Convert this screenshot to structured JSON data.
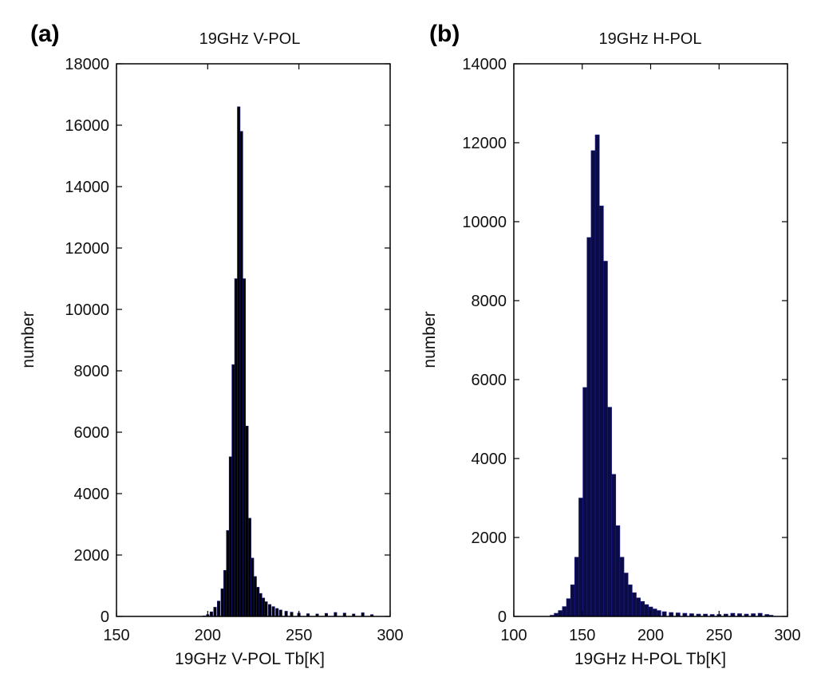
{
  "colors": {
    "bar_fill_a": "#000000",
    "bar_fill_b": "#0b0b45",
    "bar_edge": "#1a1a8c",
    "axis": "#000000",
    "background": "#ffffff"
  },
  "chart_data": [
    {
      "type": "bar",
      "panel_label": "(a)",
      "title": "19GHz V-POL",
      "xlabel": "19GHz V-POL Tb[K]",
      "ylabel": "number",
      "xlim": [
        150,
        300
      ],
      "ylim": [
        0,
        18000
      ],
      "xticks": [
        "150",
        "200",
        "250",
        "300"
      ],
      "yticks": [
        "0",
        "2000",
        "4000",
        "6000",
        "8000",
        "10000",
        "12000",
        "14000",
        "16000",
        "18000"
      ],
      "bin_width": 1.5,
      "grid": false,
      "legend": "none",
      "x": [
        198,
        200,
        202,
        204,
        206,
        208,
        209.5,
        211,
        212.5,
        214,
        215.5,
        217,
        218.5,
        220,
        221.5,
        223,
        224.5,
        226,
        227.5,
        229,
        230.5,
        232,
        234,
        236,
        238,
        240,
        243,
        246,
        250,
        255,
        260,
        265,
        270,
        275,
        280,
        285,
        290
      ],
      "values": [
        20,
        60,
        150,
        300,
        500,
        900,
        1500,
        2800,
        5200,
        8200,
        11000,
        16600,
        15800,
        11000,
        6200,
        3200,
        1900,
        1300,
        950,
        750,
        600,
        480,
        390,
        320,
        260,
        210,
        170,
        140,
        110,
        90,
        80,
        100,
        130,
        110,
        80,
        120,
        60
      ]
    },
    {
      "type": "bar",
      "panel_label": "(b)",
      "title": "19GHz H-POL",
      "xlabel": "19GHz H-POL Tb[K]",
      "ylabel": "number",
      "xlim": [
        100,
        300
      ],
      "ylim": [
        0,
        14000
      ],
      "xticks": [
        "100",
        "150",
        "200",
        "250",
        "300"
      ],
      "yticks": [
        "0",
        "2000",
        "4000",
        "6000",
        "8000",
        "10000",
        "12000",
        "14000"
      ],
      "bin_width": 3,
      "grid": false,
      "legend": "none",
      "x": [
        128,
        131,
        134,
        137,
        140,
        143,
        146,
        149,
        152,
        155,
        158,
        161,
        164,
        167,
        170,
        173,
        176,
        179,
        182,
        185,
        188,
        191,
        194,
        197,
        200,
        203,
        206,
        210,
        215,
        220,
        225,
        230,
        235,
        240,
        245,
        250,
        255,
        260,
        265,
        270,
        275,
        280,
        285,
        288
      ],
      "values": [
        30,
        80,
        150,
        250,
        450,
        800,
        1500,
        3000,
        5800,
        9600,
        11800,
        12200,
        10400,
        9000,
        5300,
        3600,
        2300,
        1500,
        1100,
        800,
        600,
        470,
        380,
        300,
        240,
        190,
        150,
        120,
        100,
        90,
        80,
        70,
        60,
        60,
        50,
        50,
        60,
        80,
        70,
        60,
        70,
        80,
        50,
        30
      ]
    }
  ]
}
